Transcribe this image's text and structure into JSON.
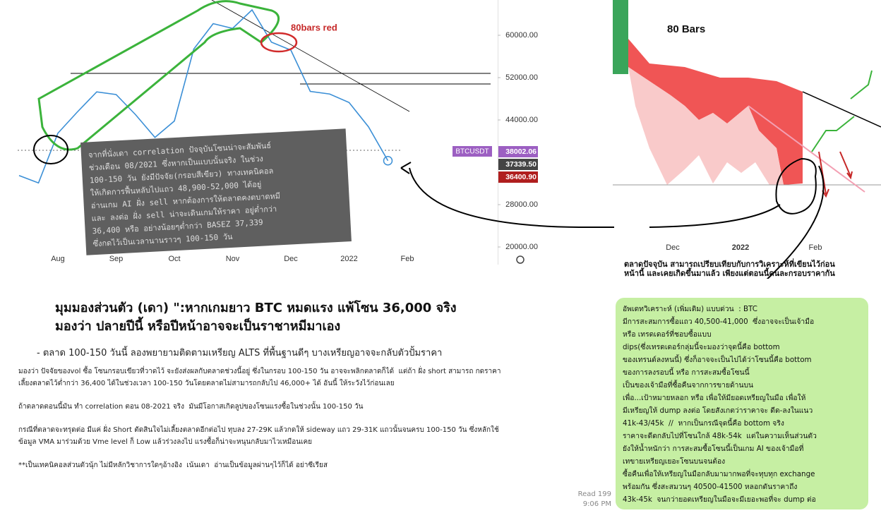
{
  "chart_data": [
    {
      "type": "line",
      "categories": [
        null,
        null,
        "Aug",
        null,
        null,
        "Sep",
        null,
        null,
        "Oct",
        null,
        null,
        "Nov",
        null,
        null,
        "Dec",
        null,
        null,
        "2022",
        null,
        null,
        "Feb"
      ],
      "series": [
        {
          "name": "BTCUSDT",
          "color": "#3b8fd6",
          "values": [
            33500,
            32100,
            41500,
            45500,
            49300,
            48800,
            45000,
            40700,
            43800,
            57400,
            62200,
            61300,
            64800,
            58700,
            57200,
            49400,
            48900,
            47300,
            42700,
            36300,
            null
          ]
        }
      ],
      "ylim": [
        16667,
        66667
      ],
      "yticks": [
        {
          "value": 20000,
          "label": "20000.00"
        },
        {
          "value": 28000,
          "label": "28000.00"
        },
        {
          "value": 44000,
          "label": "44000.00"
        },
        {
          "value": 52000,
          "label": "52000.00"
        },
        {
          "value": 60000,
          "label": "60000.00"
        }
      ],
      "price_tags": [
        "38002.06",
        "37339.50",
        "36400.90"
      ],
      "annotation": "80bars red"
    },
    {
      "type": "area",
      "title": "80 Bars",
      "categories": [
        "Dec",
        "2022",
        "Feb"
      ]
    }
  ],
  "box_note": [
    "จากที่นั่งเดา correlation ปัจจุบันโซนน่าจะสัมพันธ์",
    "ช่วงเดือน 08/2021 ซึ่งหากเป็นแบบนั้นจริง ในช่วง",
    "100-150 วัน ยังมีปัจจัย(กรอบสีเขียว) ทางเทคนิคอล",
    "ให้เกิดการฟื้นหลับไปแถว 48,900-52,000 ได้อยู่",
    "อ่านเกม AI ฝั่ง sell หากต้องการให้ตลาดคงตบาดหมี",
    "และ ลงต่อ ฝั่ง sell น่าจะเดินเกมให้ราคา อยู่ต่ำกว่า",
    "36,400 หรือ อย่างน้อยๆต่ำกว่า BASEZ 37,339",
    "ซึ่งกดไว้เป็นเวลานานราวๆ 100-150 วัน"
  ],
  "right_caption": [
    "ตลาดปัจจุบัน สามารถเปรียบเทียบกับการวิเคราะห์ที่เขียนไว้ก่อน",
    "หน้านี้ และเคยเกิดขึ้นมาแล้ว เพียงแต่ตอนนี้คนละกรอบราคากัน"
  ],
  "headline": [
    "มุมมองส่วนตัว (เดา) \":หากเกมยาว BTC หมดแรง แพ้โซน 36,000 จริง",
    "มองว่า ปลายปีนี้ หรือปีหน้าอาจจะเป็นราชาหมีมาเอง"
  ],
  "bullet": "- ตลาด 100-150 วันนี้ ลองพยายามติดตามเหรียญ ALTS  ที่พื้นฐานดีๆ บางเหรียญอาจจะกลับตัวปั้มราคา",
  "paragraphs": [
    [
      "มองว่า ปัจจัยของvol ซื้อ โซนกรอบเขียวที่วาดไว้ จะยังส่งผลกับตลาดช่วงนี้อยู่ ซึ่งในกรอบ 100-150 วัน อาจจะพลิกตลาดก็ได้  แต่ถ้า ฝั่ง short สามารถ กดราคา",
      "เลี้ยงตลาดไว้ต่ำกว่า 36,400 ได้ในช่วงเวลา 100-150 วันโดยตลาดไม่สามารถกลับไป 46,000+ ได้ อันนี้ ให้ระวังไว้ก่อนเลย"
    ],
    [
      "ถ้าตลาดตอนนี้มัน ทำ correlation ตอน 08-2021 จริง  มันมีโอกาสเกิดลูปของโซนแรงซื้อในช่วงนั้น 100-150 วัน"
    ],
    [
      "กรณีที่ตลาดจะทรุดต่อ มีแค่ ฝั่ง Short ตัดสินใจไม่เลี้ยงตลาดอีกต่อไป ทุบลง 27-29K แล้วกดให้ sideway แถว 29-31K แถวนั้นจนครบ 100-150 วัน ซึ่งหลักใช้",
      "ข้อมูล VMA มาร่วมด้วย Vme level ก็ Low แล้วร่วงลงไป แรงซื้อก็น่าจะหนุนกลับมาไวเหมือนเคย"
    ],
    [
      "**เป็นเทคนิคอลส่วนตัวนุ้ก ไม่มีหลักวิชาการใดๆอ้างอิง  เน้นเดา  อ่านเป็นข้อมูลผ่านๆไว้ก็ได้ อย่าซีเรียส"
    ]
  ],
  "chat": {
    "lines": [
      "อัพเดทวิเคราะห์ (เพิ่มเติม) แบบด่วน  : BTC",
      "มีการสะสมการซื้อแถว 40,500-41,000  ซึ่งอาจจะเป็นเจ้ามือ",
      "หรือ เทรดเดอร์ที่ชอบซื้อแบบ",
      "dips(ซึ่งเทรดเดอร์กลุ่มนี้จะมองว่าจุดนี้คือ bottom",
      "ของเทรนด์ลงหนนี้) ซึ่งก็อาจจะเป็นไปได้ว่าโซนนี้คือ bottom",
      "ของการลงรอบนี้ หรือ การสะสมซื้อโซนนี้",
      "เป็นของเจ้ามือที่ซื้อคืนจากการขายด้านบน",
      "เพื่อ...เป้าหมายหลอก หรือ เพื่อให้มียอดเหรียญในมือ เพื่อให้",
      "มีเหรียญให้ dump ลงต่อ โดยสังเกตว่าราคาจะ ดีด-ลงในแนว",
      "41k-43/45k  //  หากเป็นกรณีจุดนี้คือ bottom จริง",
      "ราคาจะดีดกลับไปที่โซนใกล้ 48k-54k  แต่ในความเห็นส่วนตัว",
      "ยังให้น้ำหนักว่า การสะสมซื้อโซนนี้เป็นเกม AI ของเจ้ามือที่",
      "เทขายเหรียญเยอะโซนบนจนต้อง",
      "ซื้อคืนเพื่อให้เหรียญในมือกลับมามากพอที่จะทุบทุก exchange",
      "พร้อมกัน ซึ่งสะสมวนๆ 40500-41500 หลอกดันราคาถึง",
      "43k-45k  จนกว่ายอดเหรียญในมือจะมีเยอะพอที่จะ dump ต่อ"
    ],
    "read": "Read 199",
    "time": "9:06 PM"
  }
}
